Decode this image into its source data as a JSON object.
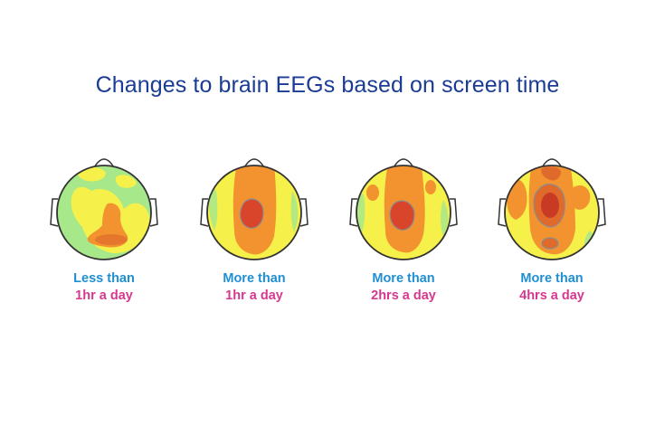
{
  "title": "Changes to brain EEGs based on screen time",
  "colors": {
    "title": "#1a3c94",
    "caption_line1": "#1f8fd4",
    "caption_line2": "#d6388f",
    "low_activity": "#a6e88a",
    "mid_activity": "#f6f04a",
    "high_activity": "#f29330",
    "peak_activity": "#d9452a"
  },
  "panels": [
    {
      "line1": "Less than",
      "line2": "1hr a day"
    },
    {
      "line1": "More than",
      "line2": "1hr a day"
    },
    {
      "line1": "More than",
      "line2": "2hrs a day"
    },
    {
      "line1": "More than",
      "line2": "4hrs a day"
    }
  ]
}
